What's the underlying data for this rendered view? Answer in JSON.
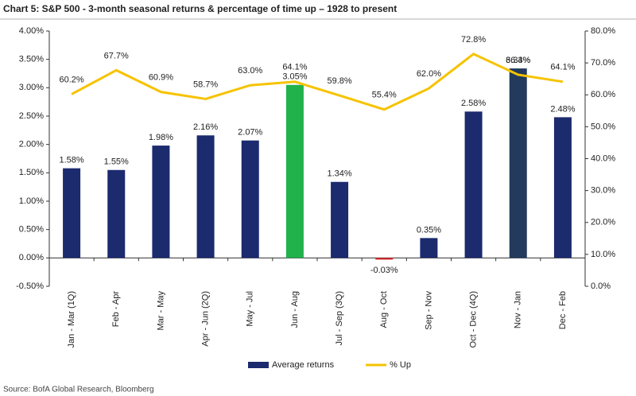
{
  "chart_data": {
    "type": "bar-line",
    "title": "Chart 5: S&P 500 - 3-month seasonal returns & percentage of time up – 1928 to present",
    "source": "Source: BofA Global Research, Bloomberg",
    "categories": [
      "Jan - Mar (1Q)",
      "Feb - Apr",
      "Mar - May",
      "Apr - Jun (2Q)",
      "May - Jul",
      "Jun - Aug",
      "Jul - Sep (3Q)",
      "Aug - Oct",
      "Sep - Nov",
      "Oct - Dec (4Q)",
      "Nov - Jan",
      "Dec - Feb"
    ],
    "series": [
      {
        "name": "Average returns",
        "type": "bar",
        "color": "#1c2a6e",
        "colors": [
          "#1c2a6e",
          "#1c2a6e",
          "#1c2a6e",
          "#1c2a6e",
          "#1c2a6e",
          "#21b24b",
          "#1c2a6e",
          "#d9262c",
          "#1c2a6e",
          "#1c2a6e",
          "#233a5c",
          "#1c2a6e"
        ],
        "values": [
          1.58,
          1.55,
          1.98,
          2.16,
          2.07,
          3.05,
          1.34,
          -0.03,
          0.35,
          2.58,
          3.34,
          2.48
        ],
        "value_labels": [
          "1.58%",
          "1.55%",
          "1.98%",
          "2.16%",
          "2.07%",
          "3.05%",
          "1.34%",
          "-0.03%",
          "0.35%",
          "2.58%",
          "3.34%",
          "2.48%"
        ]
      },
      {
        "name": "% Up",
        "type": "line",
        "axis": "y2",
        "color": "#f6c300",
        "values": [
          60.2,
          67.7,
          60.9,
          58.7,
          63.0,
          64.1,
          59.8,
          55.4,
          62.0,
          72.8,
          66.3,
          64.1
        ],
        "value_labels": [
          "60.2%",
          "67.7%",
          "60.9%",
          "58.7%",
          "63.0%",
          "64.1%",
          "59.8%",
          "55.4%",
          "62.0%",
          "72.8%",
          "66.3%",
          "64.1%"
        ]
      }
    ],
    "ylim": [
      -0.5,
      4.0
    ],
    "yticks": [
      {
        "value": -0.5,
        "label": "-0.50%"
      },
      {
        "value": 0,
        "label": "0.00%"
      },
      {
        "value": 0.5,
        "label": "0.50%"
      },
      {
        "value": 1.0,
        "label": "1.00%"
      },
      {
        "value": 1.5,
        "label": "1.50%"
      },
      {
        "value": 2.0,
        "label": "2.00%"
      },
      {
        "value": 2.5,
        "label": "2.50%"
      },
      {
        "value": 3.0,
        "label": "3.00%"
      },
      {
        "value": 3.5,
        "label": "3.50%"
      },
      {
        "value": 4.0,
        "label": "4.00%"
      }
    ],
    "y2lim": [
      0,
      80
    ],
    "y2ticks": [
      {
        "value": 0,
        "label": "0.0%"
      },
      {
        "value": 10,
        "label": "10.0%"
      },
      {
        "value": 20,
        "label": "20.0%"
      },
      {
        "value": 30,
        "label": "30.0%"
      },
      {
        "value": 40,
        "label": "40.0%"
      },
      {
        "value": 50,
        "label": "50.0%"
      },
      {
        "value": 60,
        "label": "60.0%"
      },
      {
        "value": 70,
        "label": "70.0%"
      },
      {
        "value": 80,
        "label": "80.0%"
      }
    ],
    "grid": false,
    "legend": "bottom"
  }
}
